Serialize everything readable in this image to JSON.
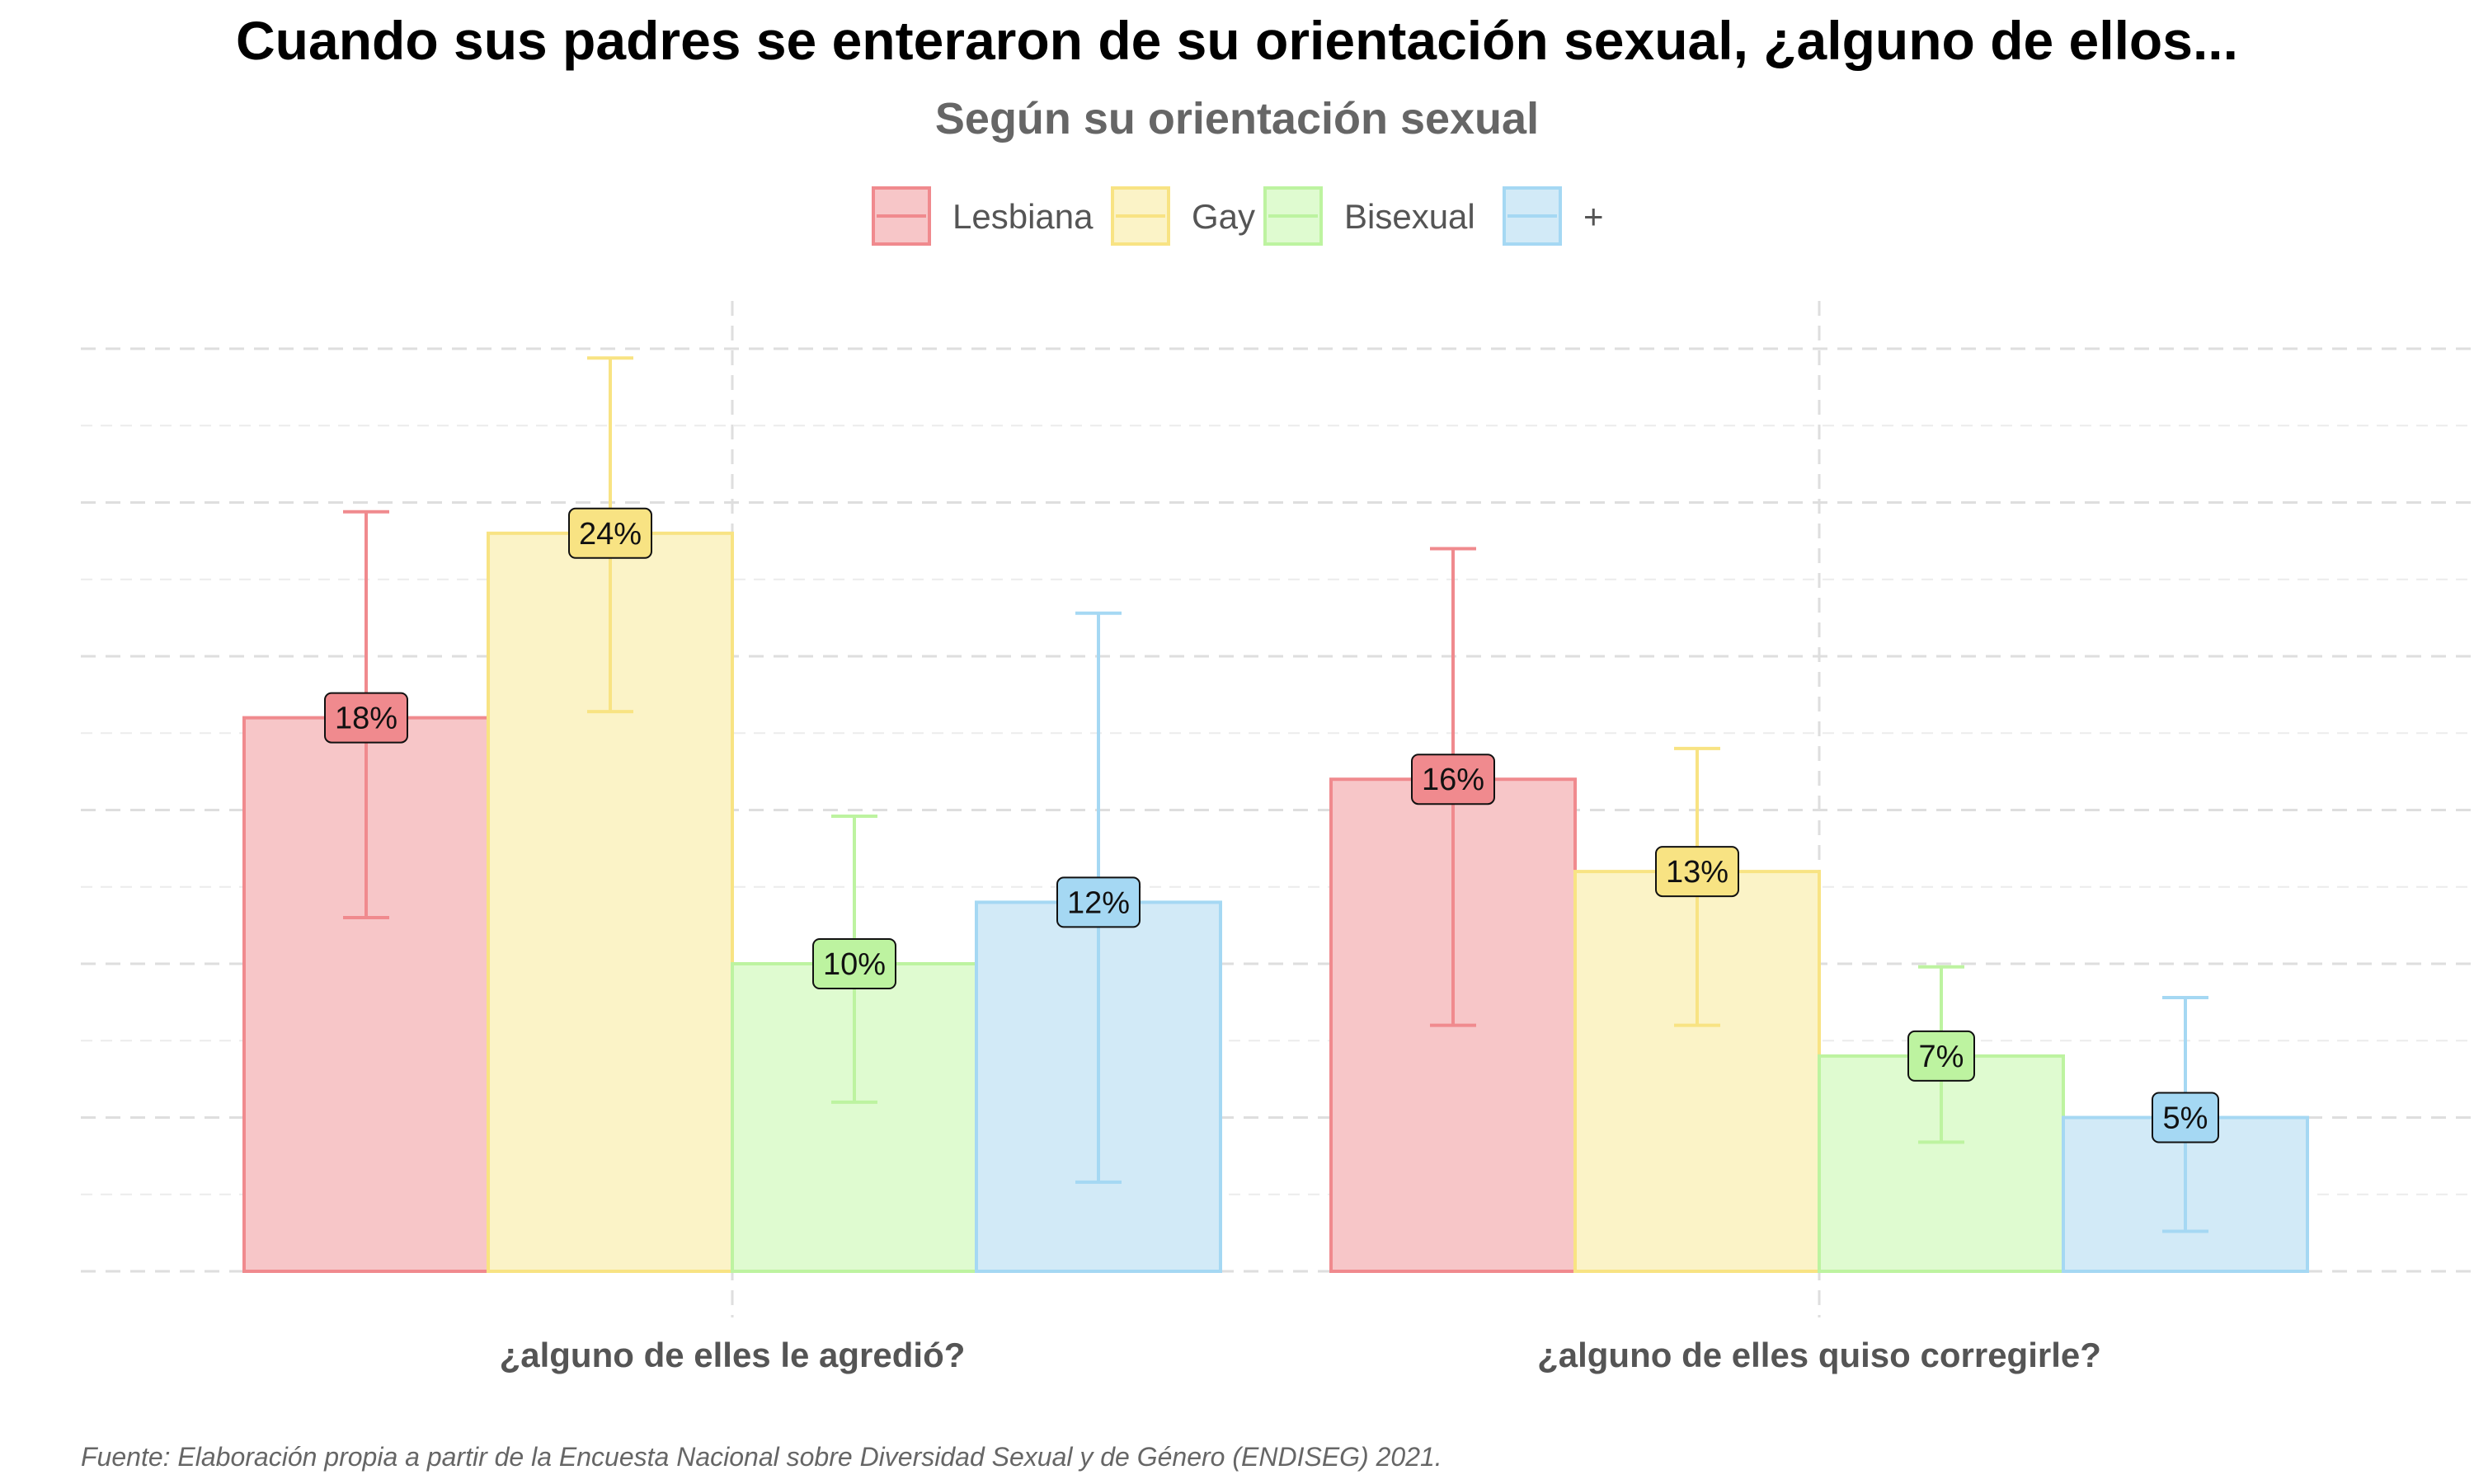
{
  "chart_data": {
    "type": "bar",
    "title": "Cuando sus padres se enteraron de su orientación sexual, ¿alguno de ellos...",
    "subtitle": "Según su orientación sexual",
    "caption": "Fuente: Elaboración propia a partir de la Encuesta Nacional sobre Diversidad Sexual y de Género (ENDISEG) 2021.",
    "categories": [
      "¿alguno de elles le agredió?",
      "¿alguno de elles quiso corregirle?"
    ],
    "ylim": [
      0,
      30
    ],
    "grid": true,
    "legend_position": "top",
    "series": [
      {
        "name": "Lesbiana",
        "color": "#F08A8E",
        "fill": "#F7C6C8",
        "values": [
          18,
          16
        ],
        "labels": [
          "18%",
          "16%"
        ],
        "error_low": [
          11.5,
          8
        ],
        "error_high": [
          24.7,
          23.5
        ]
      },
      {
        "name": "Gay",
        "color": "#F8E383",
        "fill": "#FBF3C7",
        "values": [
          24,
          13
        ],
        "labels": [
          "24%",
          "13%"
        ],
        "error_low": [
          18.2,
          8
        ],
        "error_high": [
          29.7,
          17
        ]
      },
      {
        "name": "Bisexual",
        "color": "#BDF3A0",
        "fill": "#DFFBD0",
        "values": [
          10,
          7
        ],
        "labels": [
          "10%",
          "7%"
        ],
        "error_low": [
          5.5,
          4.2
        ],
        "error_high": [
          14.8,
          9.9
        ]
      },
      {
        "name": "+",
        "color": "#A5D8F3",
        "fill": "#D2EAF7",
        "values": [
          12,
          5
        ],
        "labels": [
          "12%",
          "5%"
        ],
        "error_low": [
          2.9,
          1.3
        ],
        "error_high": [
          21.4,
          8.9
        ]
      }
    ]
  }
}
